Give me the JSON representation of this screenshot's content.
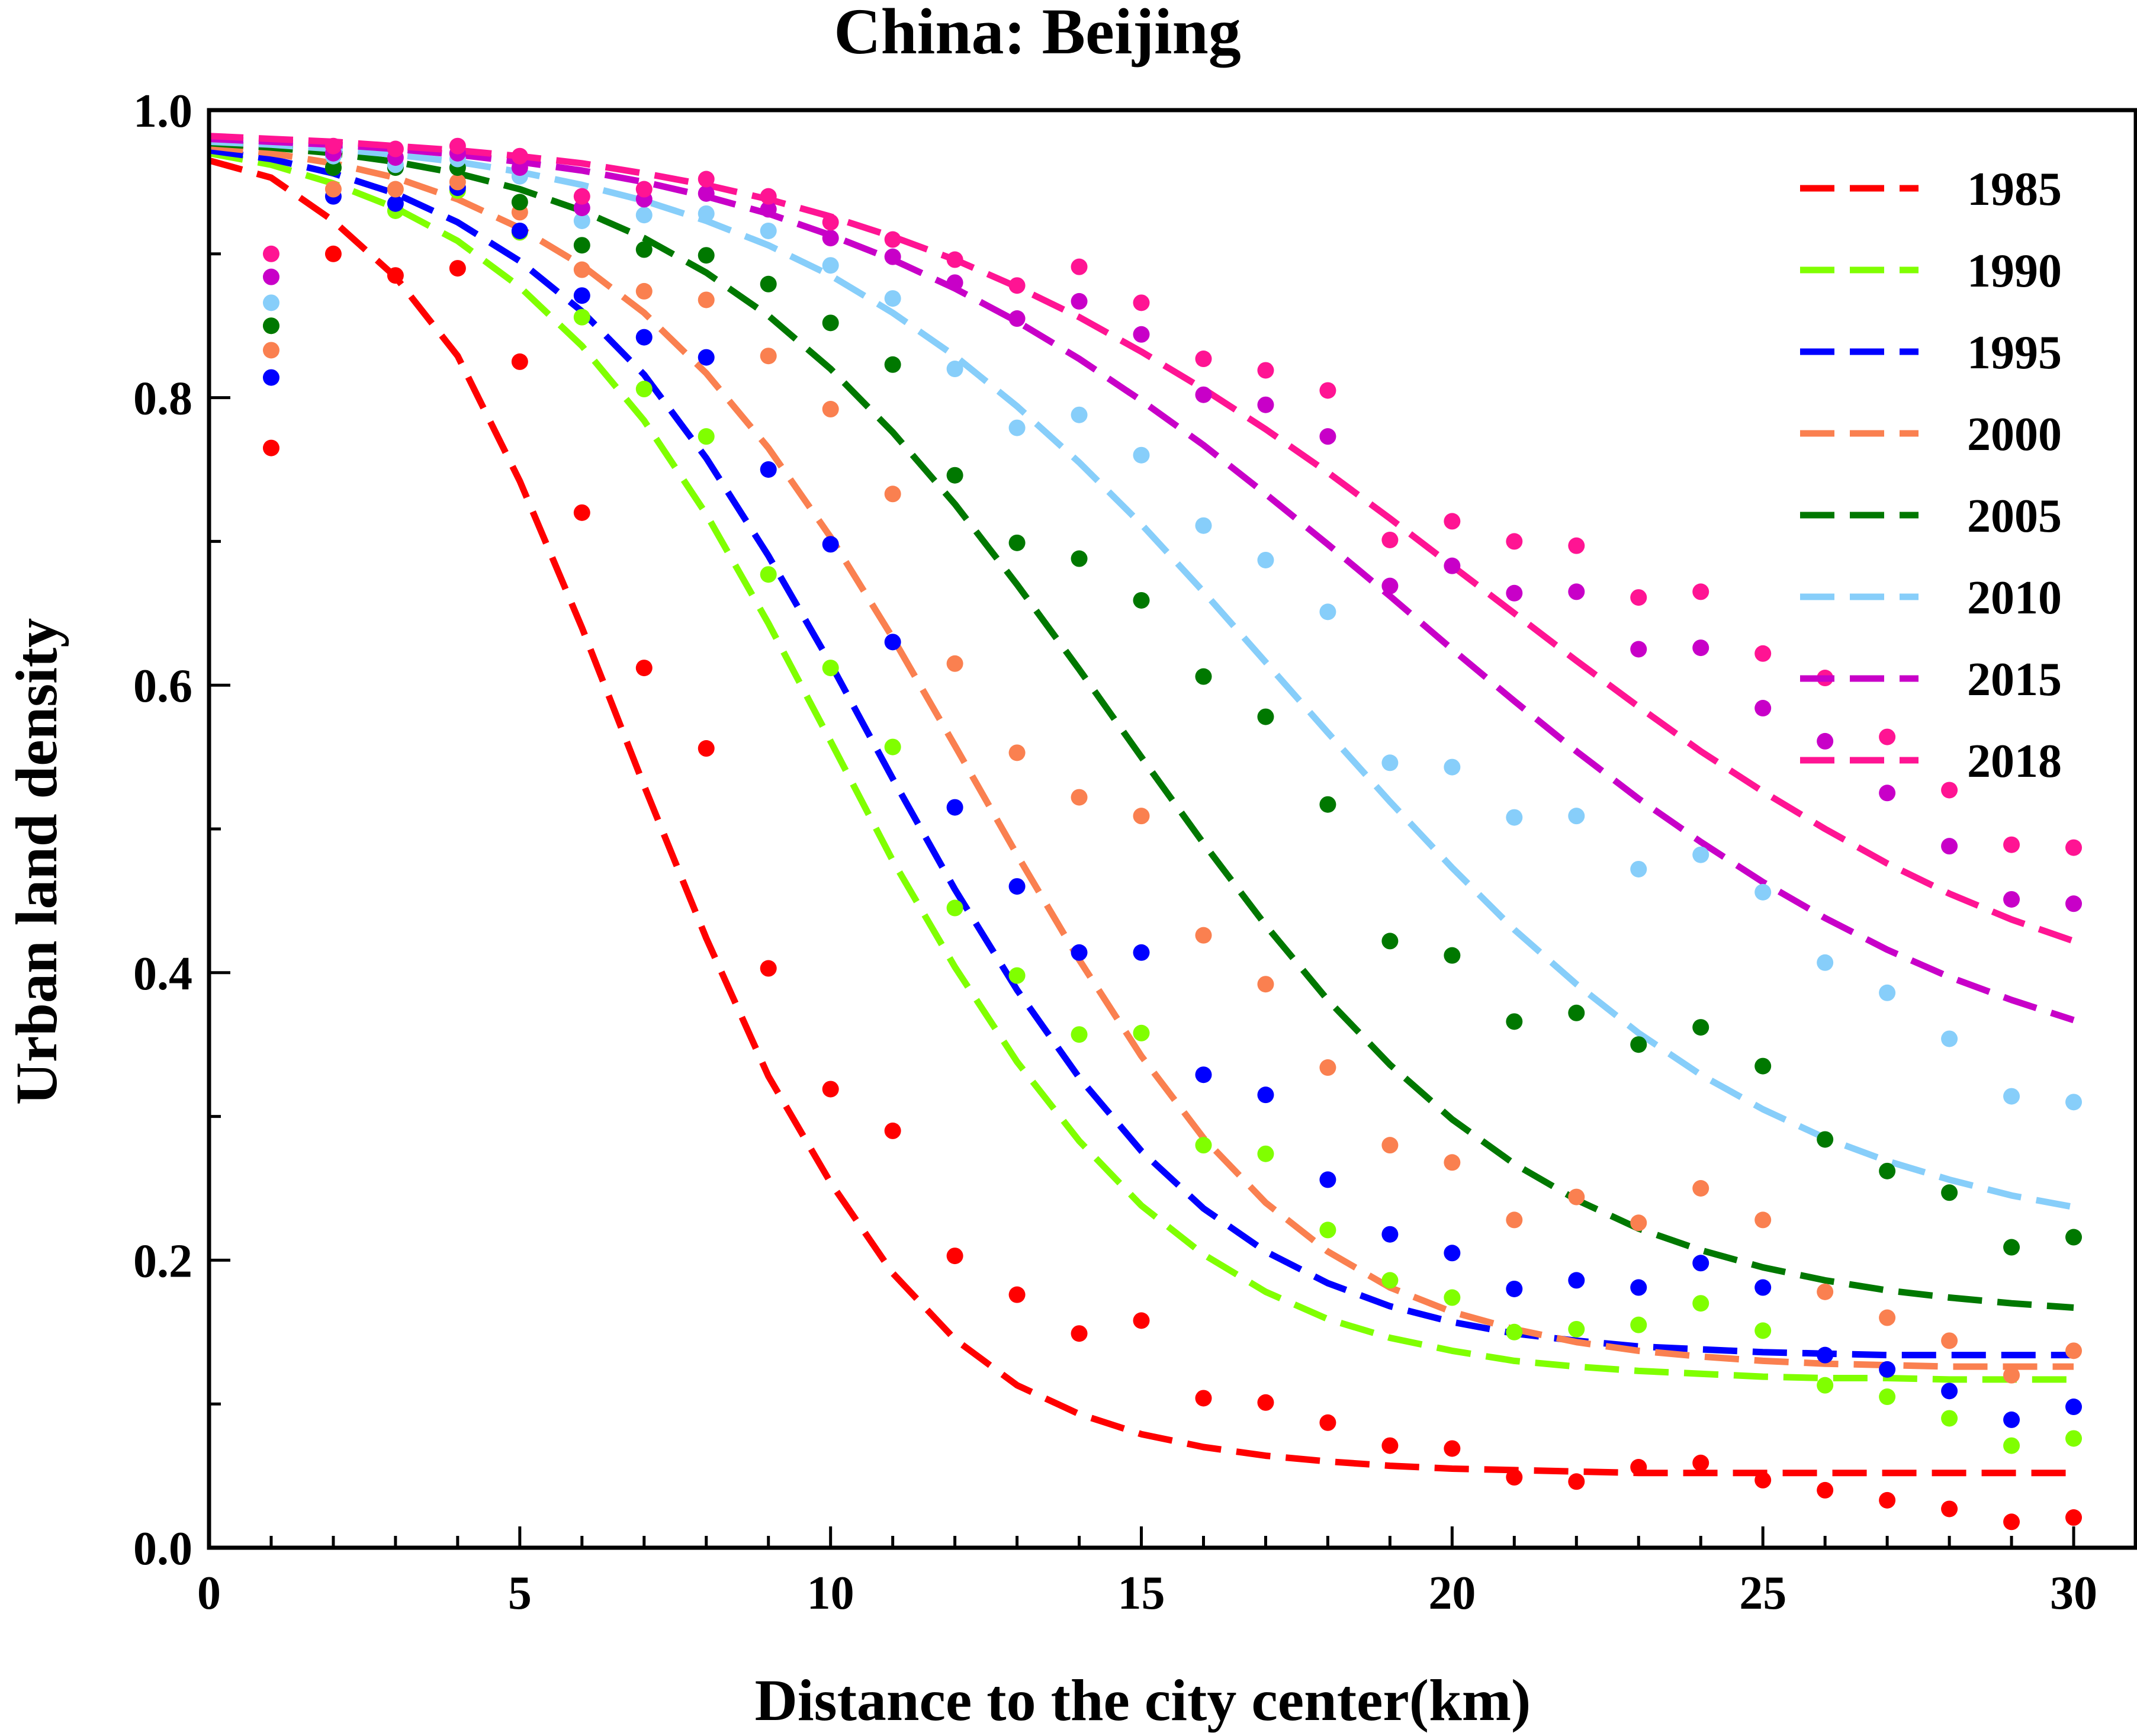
{
  "chart_data": {
    "type": "scatter",
    "title": "China: Beijing",
    "xlabel": "Distance to the city center(km)",
    "ylabel": "Urban land density",
    "xlim": [
      0,
      31
    ],
    "ylim": [
      0,
      1.0
    ],
    "x_ticks": [
      "0",
      "5",
      "10",
      "15",
      "20",
      "25",
      "30"
    ],
    "y_ticks": [
      "0.0",
      "0.2",
      "0.4",
      "0.6",
      "0.8",
      "1.0"
    ],
    "grid": false,
    "legend_position": "top-right",
    "x": [
      1,
      2,
      3,
      4,
      5,
      6,
      7,
      8,
      9,
      10,
      11,
      12,
      13,
      14,
      15,
      16,
      17,
      18,
      19,
      20,
      21,
      22,
      23,
      24,
      25,
      26,
      27,
      28,
      29,
      30
    ],
    "series": [
      {
        "name": "1985",
        "color": "#ff0000",
        "points": [
          0.765,
          0.9,
          0.885,
          0.89,
          0.825,
          0.72,
          0.612,
          0.556,
          0.403,
          0.319,
          0.29,
          0.203,
          0.176,
          0.149,
          0.158,
          0.104,
          0.101,
          0.087,
          0.071,
          0.069,
          0.049,
          0.046,
          0.056,
          0.059,
          0.047,
          0.04,
          0.033,
          0.027,
          0.018,
          0.021
        ],
        "fit": [
          0.965,
          0.953,
          0.923,
          0.884,
          0.829,
          0.742,
          0.64,
          0.53,
          0.424,
          0.328,
          0.254,
          0.191,
          0.145,
          0.113,
          0.093,
          0.079,
          0.07,
          0.064,
          0.06,
          0.057,
          0.055,
          0.054,
          0.053,
          0.052,
          0.052,
          0.052,
          0.052,
          0.052,
          0.052,
          0.052,
          0.052
        ]
      },
      {
        "name": "1990",
        "color": "#80ff00",
        "points": [
          0.85,
          0.96,
          0.93,
          0.944,
          0.915,
          0.856,
          0.806,
          0.773,
          0.677,
          0.612,
          0.557,
          0.445,
          0.398,
          0.357,
          0.358,
          0.28,
          0.274,
          0.221,
          0.186,
          0.174,
          0.15,
          0.152,
          0.155,
          0.17,
          0.151,
          0.113,
          0.105,
          0.09,
          0.071,
          0.076
        ],
        "fit": [
          0.97,
          0.962,
          0.949,
          0.932,
          0.909,
          0.877,
          0.836,
          0.784,
          0.719,
          0.643,
          0.561,
          0.478,
          0.404,
          0.338,
          0.283,
          0.238,
          0.204,
          0.178,
          0.159,
          0.146,
          0.137,
          0.13,
          0.126,
          0.123,
          0.121,
          0.119,
          0.118,
          0.118,
          0.117,
          0.117,
          0.117
        ]
      },
      {
        "name": "1995",
        "color": "#0000ff",
        "points": [
          0.814,
          0.94,
          0.935,
          0.946,
          0.916,
          0.871,
          0.842,
          0.828,
          0.75,
          0.698,
          0.63,
          0.515,
          0.46,
          0.414,
          0.414,
          0.329,
          0.315,
          0.256,
          0.218,
          0.205,
          0.18,
          0.186,
          0.181,
          0.198,
          0.181,
          0.134,
          0.124,
          0.109,
          0.089,
          0.098
        ],
        "fit": [
          0.972,
          0.966,
          0.956,
          0.942,
          0.922,
          0.895,
          0.86,
          0.816,
          0.758,
          0.69,
          0.615,
          0.535,
          0.458,
          0.388,
          0.327,
          0.276,
          0.236,
          0.206,
          0.184,
          0.168,
          0.157,
          0.149,
          0.144,
          0.14,
          0.138,
          0.136,
          0.135,
          0.134,
          0.134,
          0.134,
          0.134
        ]
      },
      {
        "name": "2000",
        "color": "#fa8050",
        "points": [
          0.833,
          0.945,
          0.945,
          0.95,
          0.929,
          0.889,
          0.874,
          0.868,
          0.829,
          0.792,
          0.733,
          0.615,
          0.553,
          0.522,
          0.509,
          0.426,
          0.392,
          0.334,
          0.28,
          0.268,
          0.228,
          0.244,
          0.226,
          0.25,
          0.228,
          0.178,
          0.16,
          0.144,
          0.12,
          0.137
        ],
        "fit": [
          0.975,
          0.97,
          0.963,
          0.953,
          0.938,
          0.918,
          0.892,
          0.859,
          0.817,
          0.765,
          0.703,
          0.633,
          0.558,
          0.482,
          0.409,
          0.342,
          0.285,
          0.24,
          0.206,
          0.181,
          0.164,
          0.152,
          0.143,
          0.137,
          0.133,
          0.13,
          0.128,
          0.127,
          0.126,
          0.126,
          0.126
        ]
      },
      {
        "name": "2005",
        "color": "#007800",
        "points": [
          0.85,
          0.96,
          0.96,
          0.96,
          0.936,
          0.906,
          0.903,
          0.899,
          0.879,
          0.852,
          0.823,
          0.746,
          0.699,
          0.688,
          0.659,
          0.606,
          0.578,
          0.517,
          0.422,
          0.412,
          0.366,
          0.372,
          0.35,
          0.362,
          0.335,
          0.284,
          0.262,
          0.247,
          0.209,
          0.216
        ],
        "fit": [
          0.977,
          0.974,
          0.97,
          0.964,
          0.956,
          0.945,
          0.93,
          0.911,
          0.887,
          0.857,
          0.82,
          0.776,
          0.726,
          0.67,
          0.611,
          0.55,
          0.49,
          0.433,
          0.381,
          0.336,
          0.298,
          0.267,
          0.242,
          0.222,
          0.207,
          0.195,
          0.186,
          0.179,
          0.174,
          0.17,
          0.167
        ]
      },
      {
        "name": "2010",
        "color": "#87cefa",
        "points": [
          0.866,
          0.968,
          0.962,
          0.966,
          0.954,
          0.923,
          0.927,
          0.928,
          0.916,
          0.892,
          0.869,
          0.82,
          0.779,
          0.788,
          0.76,
          0.711,
          0.687,
          0.651,
          0.546,
          0.543,
          0.508,
          0.509,
          0.472,
          0.482,
          0.456,
          0.407,
          0.386,
          0.354,
          0.314,
          0.31
        ],
        "fit": [
          0.978,
          0.976,
          0.973,
          0.969,
          0.964,
          0.957,
          0.948,
          0.937,
          0.923,
          0.906,
          0.885,
          0.859,
          0.829,
          0.794,
          0.755,
          0.712,
          0.665,
          0.616,
          0.567,
          0.519,
          0.473,
          0.43,
          0.392,
          0.358,
          0.329,
          0.305,
          0.285,
          0.269,
          0.256,
          0.245,
          0.237
        ]
      },
      {
        "name": "2015",
        "color": "#c800c8",
        "points": [
          0.884,
          0.97,
          0.967,
          0.97,
          0.96,
          0.932,
          0.938,
          0.942,
          0.931,
          0.911,
          0.898,
          0.88,
          0.855,
          0.867,
          0.844,
          0.802,
          0.795,
          0.773,
          0.669,
          0.683,
          0.664,
          0.665,
          0.625,
          0.626,
          0.584,
          0.561,
          0.525,
          0.488,
          0.451,
          0.448
        ],
        "fit": [
          0.98,
          0.978,
          0.976,
          0.973,
          0.969,
          0.964,
          0.958,
          0.95,
          0.94,
          0.928,
          0.913,
          0.896,
          0.876,
          0.853,
          0.827,
          0.798,
          0.767,
          0.733,
          0.698,
          0.662,
          0.625,
          0.589,
          0.554,
          0.521,
          0.491,
          0.463,
          0.438,
          0.416,
          0.397,
          0.381,
          0.367
        ]
      },
      {
        "name": "2018",
        "color": "#ff1493",
        "points": [
          0.9,
          0.975,
          0.973,
          0.975,
          0.968,
          0.94,
          0.945,
          0.952,
          0.94,
          0.922,
          0.91,
          0.896,
          0.878,
          0.891,
          0.866,
          0.827,
          0.819,
          0.805,
          0.701,
          0.714,
          0.7,
          0.697,
          0.661,
          0.665,
          0.622,
          0.605,
          0.564,
          0.527,
          0.489,
          0.487
        ],
        "fit": [
          0.982,
          0.98,
          0.978,
          0.975,
          0.972,
          0.968,
          0.963,
          0.956,
          0.948,
          0.938,
          0.926,
          0.912,
          0.896,
          0.877,
          0.856,
          0.832,
          0.806,
          0.778,
          0.748,
          0.716,
          0.683,
          0.65,
          0.617,
          0.585,
          0.554,
          0.526,
          0.5,
          0.476,
          0.455,
          0.437,
          0.422
        ]
      }
    ]
  }
}
